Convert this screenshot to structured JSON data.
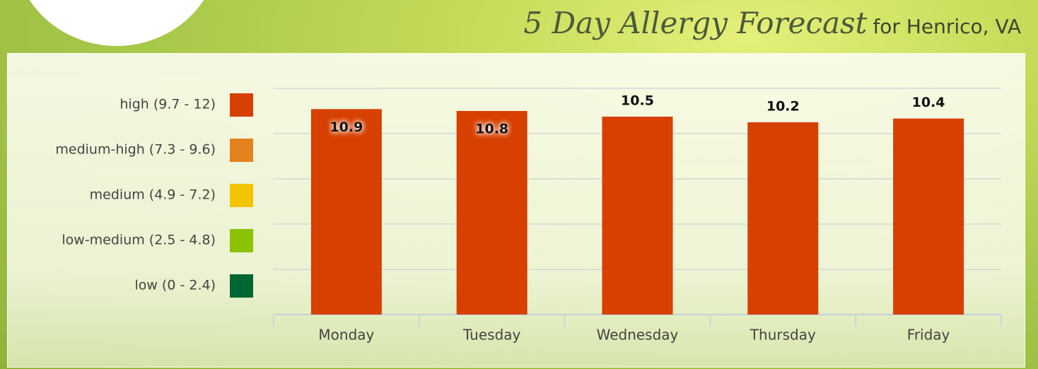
{
  "header": {
    "title": "5 Day Allergy Forecast",
    "subtitle": "for Henrico, VA"
  },
  "chart_data": {
    "type": "bar",
    "categories": [
      "Monday",
      "Tuesday",
      "Wednesday",
      "Thursday",
      "Friday"
    ],
    "values": [
      10.9,
      10.8,
      10.5,
      10.2,
      10.4
    ],
    "color": "#d64000",
    "ylim": [
      0,
      12
    ],
    "yticks": [
      0,
      2.4,
      4.8,
      7.2,
      9.6,
      12
    ],
    "grid": true,
    "legend": [
      {
        "label": "high (9.7 - 12)",
        "color": "#d64000"
      },
      {
        "label": "medium-high (7.3 - 9.6)",
        "color": "#e3821f"
      },
      {
        "label": "medium (4.9 - 7.2)",
        "color": "#f2c500"
      },
      {
        "label": "low-medium (2.5 - 4.8)",
        "color": "#8cc300"
      },
      {
        "label": "low (0 - 2.4)",
        "color": "#006633"
      }
    ]
  }
}
